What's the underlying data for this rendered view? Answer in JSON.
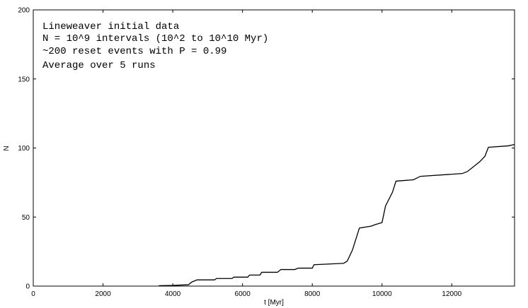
{
  "chart_data": {
    "type": "line",
    "xlabel": "t [Myr]",
    "ylabel": "N",
    "xlim": [
      0,
      13800
    ],
    "ylim": [
      0,
      200
    ],
    "xticks": [
      0,
      2000,
      4000,
      6000,
      8000,
      10000,
      12000
    ],
    "yticks": [
      0,
      50,
      100,
      150,
      200
    ],
    "grid": false,
    "annotations": [
      "Lineweaver initial data",
      "N = 10^9 intervals (10^2 to 10^10 Myr)",
      "~200 reset events with P = 0.99",
      "Average over 5 runs"
    ],
    "series": [
      {
        "x": [
          3600,
          4000,
          4450,
          4550,
          4700,
          5200,
          5250,
          5700,
          5750,
          6150,
          6200,
          6500,
          6550,
          7000,
          7100,
          7500,
          7600,
          8000,
          8050,
          8900,
          9000,
          9150,
          9250,
          9350,
          9700,
          9800,
          10000,
          10100,
          10300,
          10400,
          10900,
          11100,
          12300,
          12450,
          12800,
          12950,
          13050,
          13600,
          13800
        ],
        "y": [
          0.3,
          0.5,
          1,
          3,
          4.5,
          4.5,
          5.5,
          5.5,
          6.5,
          6.5,
          8,
          8,
          10,
          10,
          12,
          12,
          13,
          13,
          15.5,
          16.5,
          18,
          26,
          34,
          42,
          43.5,
          44.5,
          46,
          58,
          68,
          76,
          77,
          79.5,
          81.5,
          83,
          90,
          94,
          100.5,
          101.5,
          102.5
        ]
      }
    ]
  }
}
